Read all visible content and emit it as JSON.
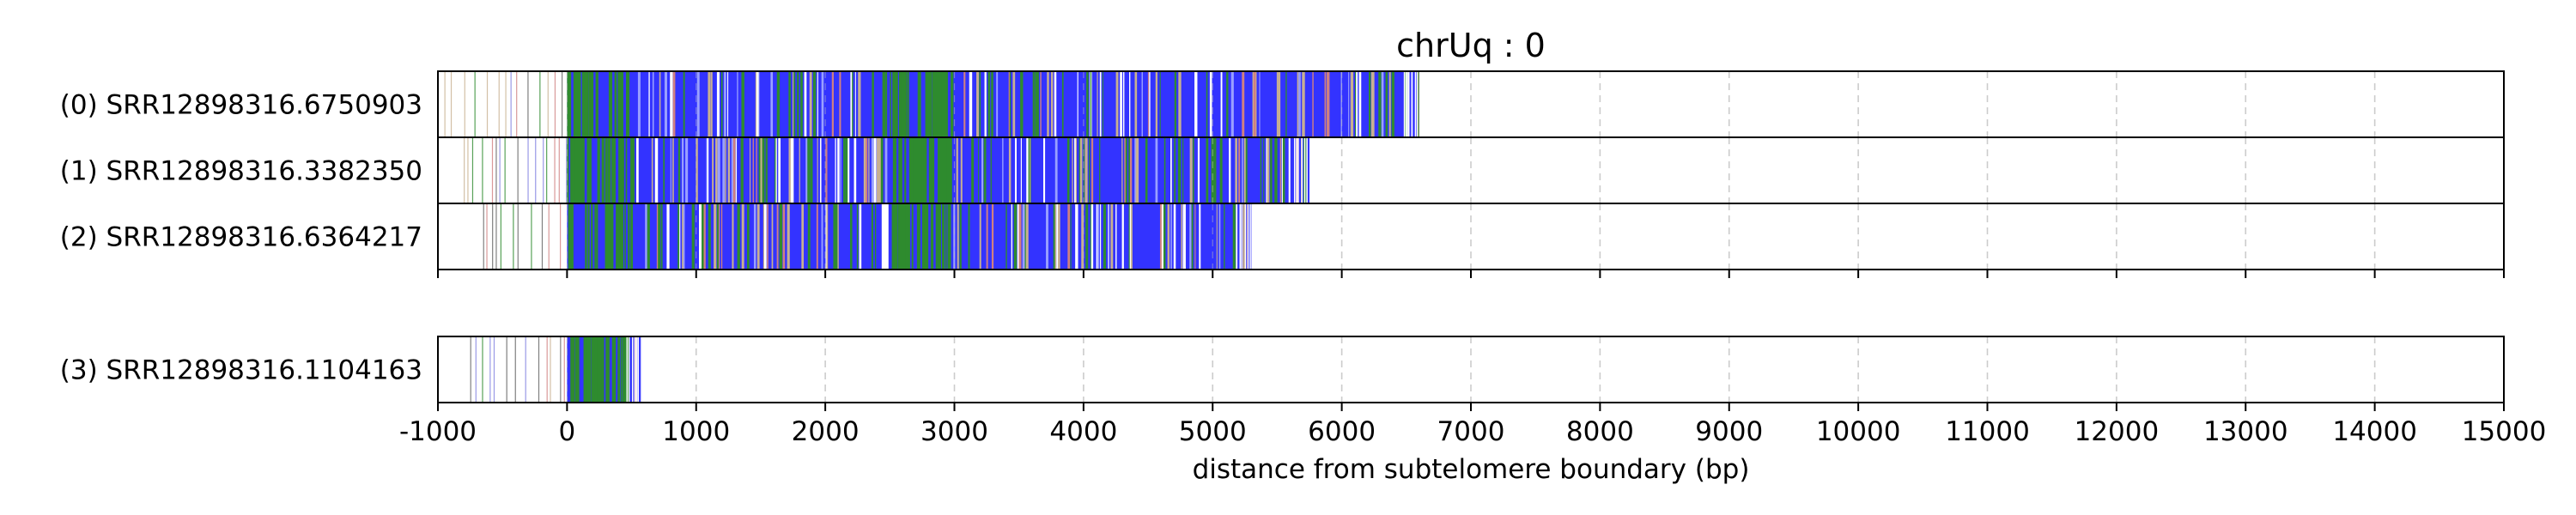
{
  "chart_data": {
    "type": "read-track-plot",
    "title": "chrUq : 0",
    "xlabel": "distance from subtelomere boundary (bp)",
    "xlim": [
      -1000,
      15000
    ],
    "xticks": [
      -1000,
      0,
      1000,
      2000,
      3000,
      4000,
      5000,
      6000,
      7000,
      8000,
      9000,
      10000,
      11000,
      12000,
      13000,
      14000,
      15000
    ],
    "xtick_labels": [
      "-1000",
      "0",
      "1000",
      "2000",
      "3000",
      "4000",
      "5000",
      "6000",
      "7000",
      "8000",
      "9000",
      "10000",
      "11000",
      "12000",
      "13000",
      "14000",
      "15000"
    ],
    "grid": "vertical dashed",
    "colors": {
      "telomere_repeat": "#3333ff",
      "variant_repeat": "#2e8b2e",
      "other": "#d08080",
      "unknown": "#c8b090",
      "grid": "#cccccc"
    },
    "groups": [
      {
        "reads": [
          {
            "label": "(0) SRR12898316.6750903",
            "start": -950,
            "end": 6600
          },
          {
            "label": "(1) SRR12898316.3382350",
            "start": -800,
            "end": 5750
          },
          {
            "label": "(2) SRR12898316.6364217",
            "start": -650,
            "end": 5300
          }
        ]
      },
      {
        "reads": [
          {
            "label": "(3) SRR12898316.1104163",
            "start": -750,
            "end": 580
          }
        ]
      }
    ]
  }
}
